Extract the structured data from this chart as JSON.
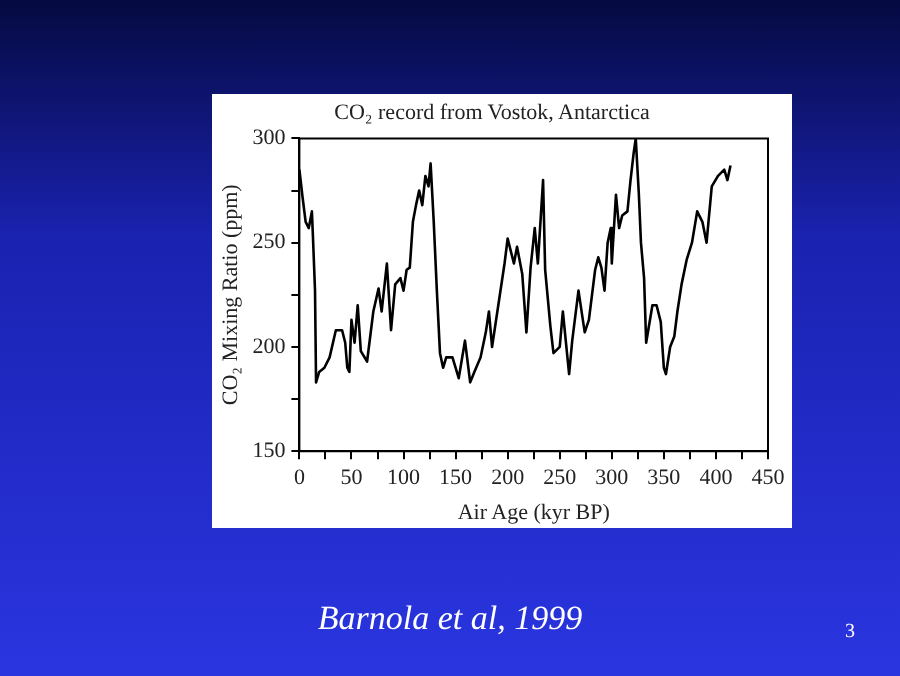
{
  "chart_data": {
    "type": "line",
    "title": "CO₂ record from Vostok, Antarctica",
    "xlabel": "Air Age (kyr BP)",
    "ylabel": "CO₂ Mixing Ratio (ppm)",
    "x": [
      0,
      3,
      6,
      9,
      12,
      13,
      15,
      16,
      19,
      24,
      29,
      35,
      41,
      44,
      46,
      48,
      50,
      53,
      56,
      59,
      65,
      71,
      76,
      79,
      84,
      88,
      92,
      97,
      100,
      103,
      106,
      109,
      112,
      115,
      118,
      121,
      124,
      126,
      129,
      132,
      135,
      138,
      141,
      147,
      153,
      159,
      164,
      168,
      174,
      179,
      182,
      185,
      191,
      197,
      200,
      206,
      209,
      214,
      218,
      222,
      226,
      229,
      234,
      236,
      241,
      244,
      250,
      253,
      256,
      259,
      262,
      268,
      274,
      278,
      284,
      287,
      290,
      293,
      296,
      299,
      300,
      304,
      307,
      310,
      315,
      318,
      321,
      323,
      326,
      328,
      331,
      333,
      335,
      339,
      343,
      347,
      350,
      352,
      356,
      360,
      363,
      367,
      372,
      377,
      382,
      387,
      391,
      396,
      402,
      408,
      411,
      414
    ],
    "series": [
      {
        "color": "#000000",
        "values": [
          285,
          272,
          260,
          257,
          265,
          253,
          227,
          183,
          188,
          190,
          195,
          208,
          208,
          202,
          190,
          188,
          213,
          202,
          220,
          198,
          193,
          217,
          228,
          217,
          240,
          208,
          230,
          233,
          227,
          237,
          238,
          260,
          268,
          275,
          268,
          282,
          277,
          288,
          260,
          227,
          197,
          190,
          195,
          195,
          185,
          203,
          183,
          188,
          195,
          207,
          217,
          200,
          220,
          240,
          252,
          240,
          248,
          235,
          207,
          238,
          257,
          240,
          280,
          237,
          210,
          197,
          200,
          217,
          202,
          187,
          203,
          227,
          207,
          213,
          237,
          243,
          238,
          227,
          250,
          257,
          240,
          273,
          257,
          263,
          265,
          280,
          293,
          300,
          273,
          250,
          233,
          202,
          208,
          220,
          220,
          212,
          190,
          187,
          200,
          205,
          217,
          230,
          242,
          250,
          265,
          260,
          250,
          277,
          282,
          285,
          280,
          287
        ]
      }
    ],
    "xlim": [
      0,
      450
    ],
    "xticks": [
      0,
      {
        "value": 25,
        "label": null
      },
      50,
      {
        "value": 75,
        "label": null
      },
      100,
      {
        "value": 125,
        "label": null
      },
      150,
      {
        "value": 175,
        "label": null
      },
      200,
      {
        "value": 225,
        "label": null
      },
      250,
      {
        "value": 275,
        "label": null
      },
      300,
      {
        "value": 325,
        "label": null
      },
      350,
      {
        "value": 375,
        "label": null
      },
      400,
      {
        "value": 425,
        "label": null
      },
      450
    ],
    "ylim": [
      150,
      300
    ],
    "yticks": [
      150,
      {
        "value": 175,
        "label": null
      },
      200,
      {
        "value": 225,
        "label": null
      },
      250,
      {
        "value": 275,
        "label": null
      },
      300
    ],
    "grid": false,
    "legend": false,
    "marker": "none",
    "line_style": "solid",
    "annotations": [
      "Barnola et al, 1999",
      "3"
    ]
  }
}
